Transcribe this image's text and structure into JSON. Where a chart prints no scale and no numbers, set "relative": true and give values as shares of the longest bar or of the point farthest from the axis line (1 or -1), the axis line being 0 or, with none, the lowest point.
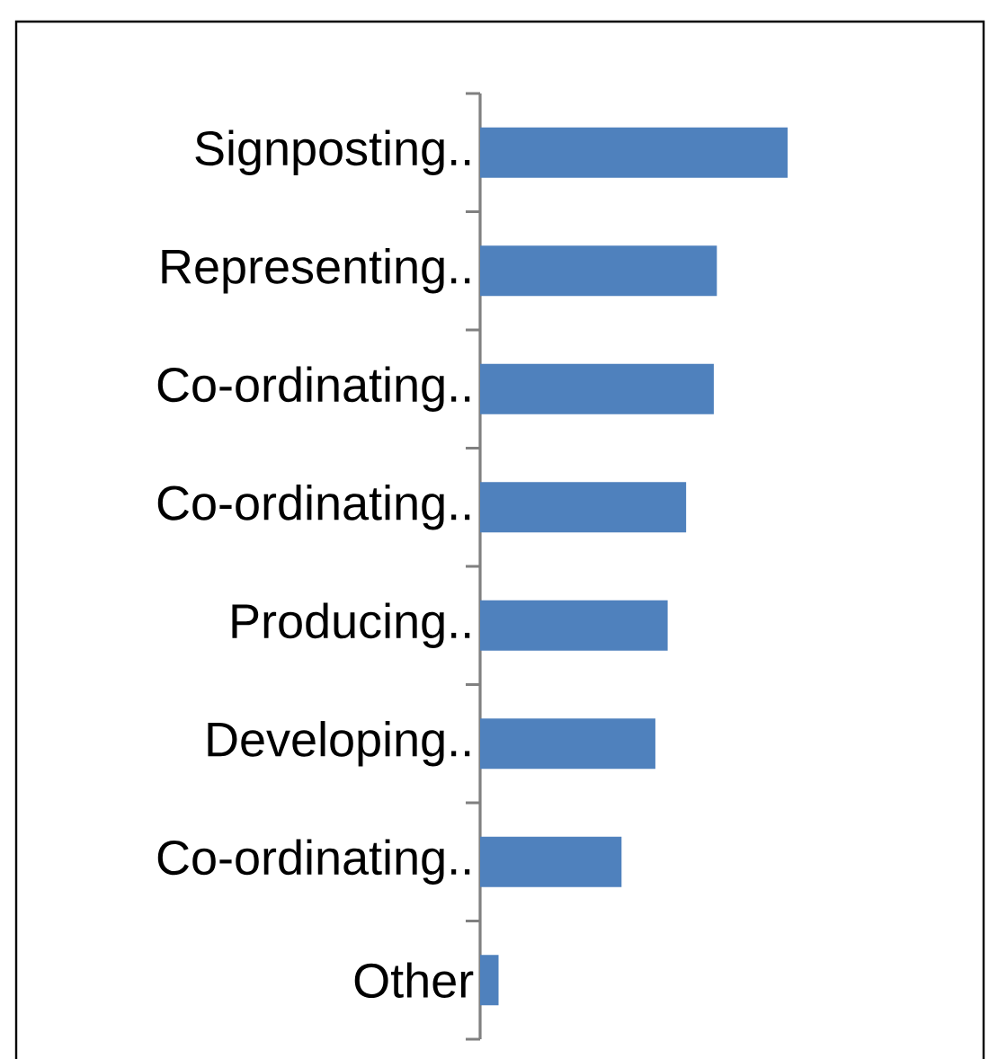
{
  "chart_data": {
    "type": "bar",
    "orientation": "horizontal",
    "relative": true,
    "color": "#4f81bd",
    "categories": [
      "Signposting..",
      "Representing..",
      "Co-ordinating..",
      "Co-ordinating..",
      "Producing..",
      "Developing..",
      "Co-ordinating..",
      "Other"
    ],
    "values": [
      1,
      0.77,
      0.76,
      0.67,
      0.61,
      0.57,
      0.46,
      0.06
    ]
  }
}
